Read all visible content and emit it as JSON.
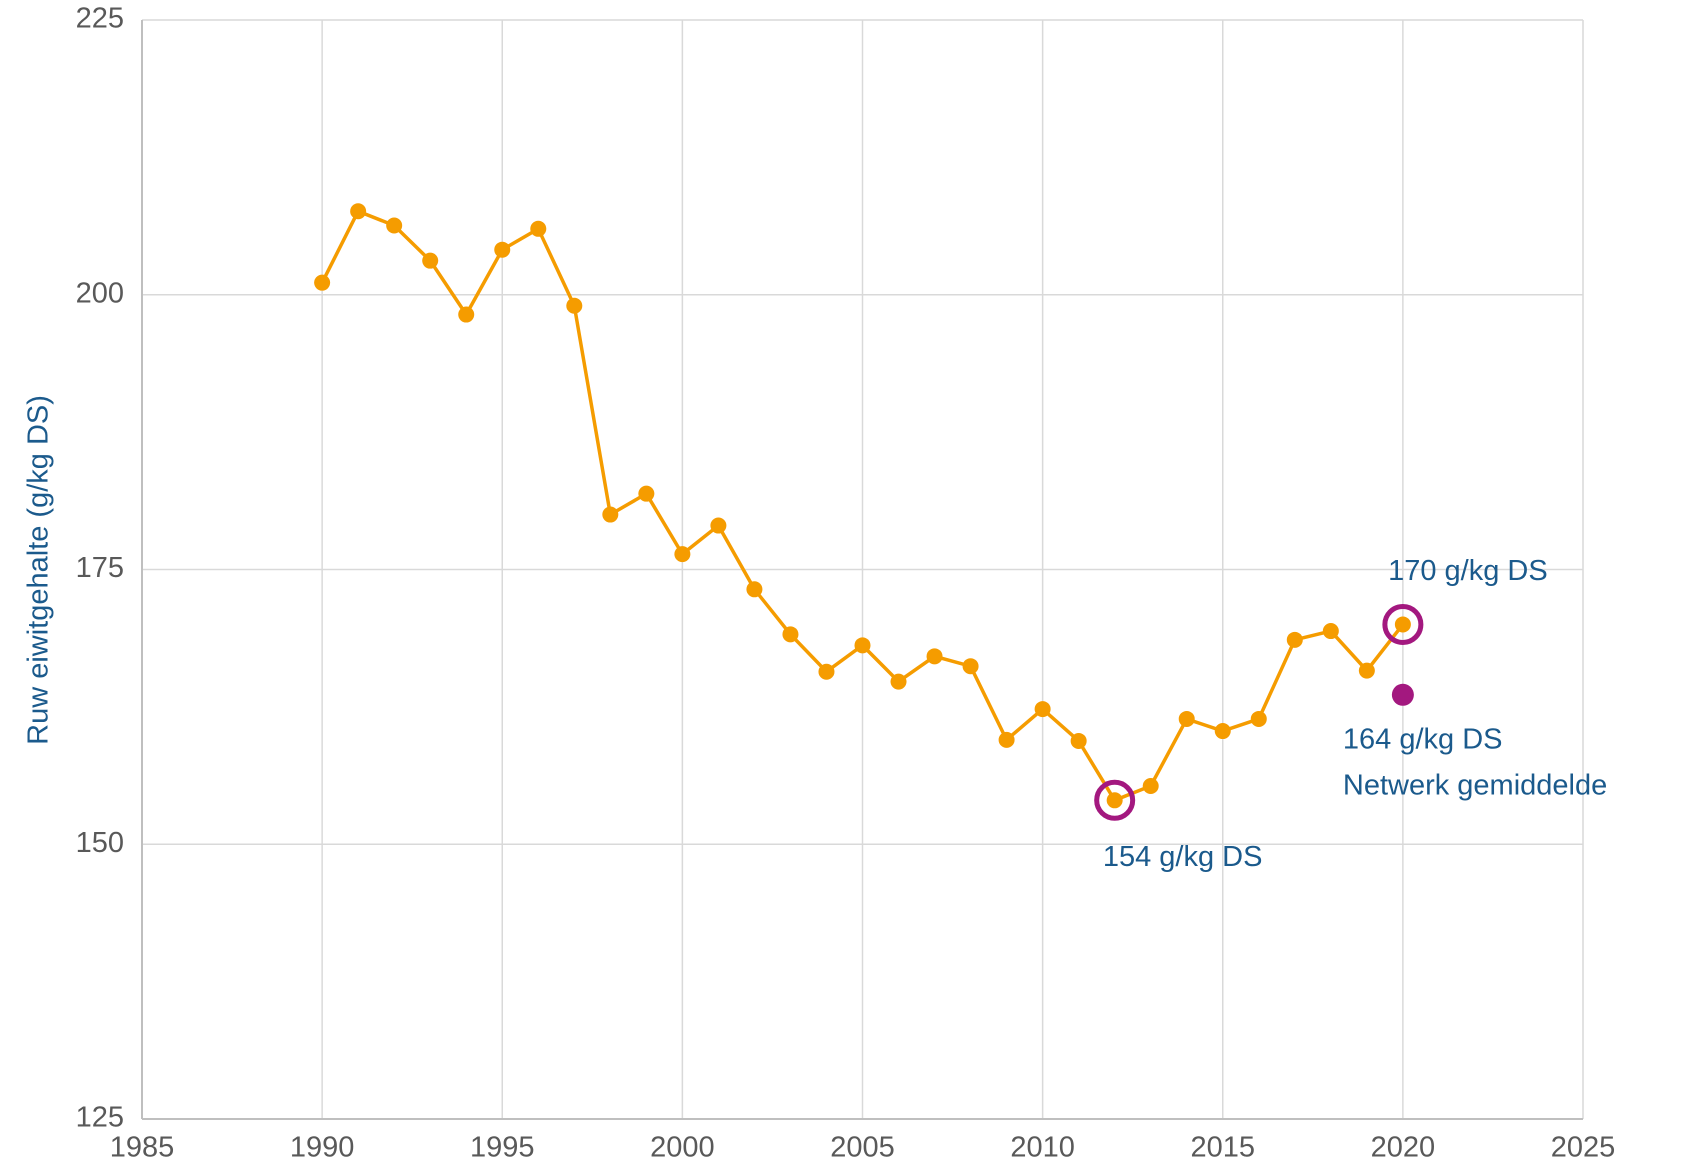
{
  "chart_data": {
    "type": "line",
    "y_label": "Ruw eiwitgehalte (g/kg DS)",
    "xlim": [
      1985,
      2025
    ],
    "xticks": [
      1985,
      1990,
      1995,
      2000,
      2005,
      2010,
      2015,
      2020,
      2025
    ],
    "ylim": [
      125,
      225
    ],
    "yticks": [
      125,
      150,
      175,
      200,
      225
    ],
    "grid": true,
    "series": [
      {
        "color": "#f59c00",
        "x": [
          1990,
          1991,
          1992,
          1993,
          1994,
          1995,
          1996,
          1997,
          1998,
          1999,
          2000,
          2001,
          2002,
          2003,
          2004,
          2005,
          2006,
          2007,
          2008,
          2009,
          2010,
          2011,
          2012,
          2013,
          2014,
          2015,
          2016,
          2017,
          2018,
          2019,
          2020
        ],
        "values": [
          201.1,
          207.6,
          206.3,
          203.1,
          198.2,
          204.1,
          206.0,
          199.0,
          180.0,
          181.9,
          176.4,
          179.0,
          173.2,
          169.1,
          165.7,
          168.1,
          164.8,
          167.1,
          166.2,
          159.5,
          162.3,
          159.4,
          154,
          155.3,
          161.4,
          160.3,
          161.4,
          168.6,
          169.4,
          165.8,
          170
        ],
        "value_labels": [
          null,
          null,
          null,
          null,
          null,
          null,
          null,
          null,
          null,
          null,
          null,
          null,
          null,
          null,
          null,
          null,
          null,
          null,
          null,
          null,
          null,
          null,
          "154 g/kg DS",
          null,
          null,
          null,
          null,
          null,
          null,
          null,
          "170 g/kg DS"
        ],
        "highlighted": [
          22,
          30
        ],
        "highlight_color": "#a3187f"
      },
      {
        "name": "Netwerk gemiddelde",
        "type": "scatter",
        "color": "#a3187f",
        "x": [
          2020
        ],
        "values": [
          163.6
        ],
        "value_labels": [
          "164 g/kg DS"
        ]
      }
    ]
  }
}
